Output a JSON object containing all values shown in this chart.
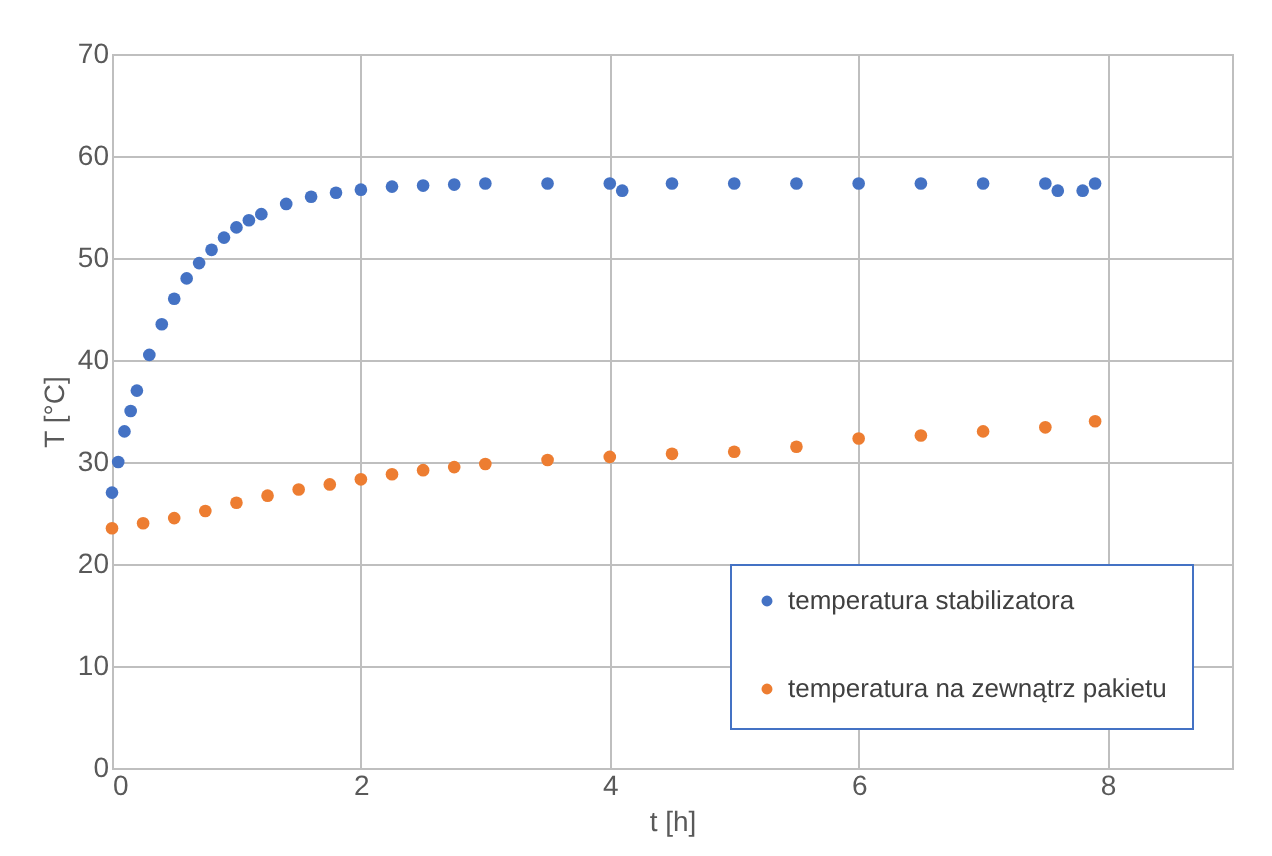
{
  "chart_data": {
    "type": "scatter",
    "xlabel": "t [h]",
    "ylabel": "T [°C]",
    "xlim": [
      0,
      9
    ],
    "xticks": [
      0,
      2,
      4,
      6,
      8
    ],
    "ylim": [
      0,
      70
    ],
    "yticks": [
      0,
      10,
      20,
      30,
      40,
      50,
      60,
      70
    ],
    "grid": true,
    "legend": "bottom right",
    "marker": "circle",
    "series": [
      {
        "name": "temperatura stabilizatora",
        "color": "#4472c4",
        "x": [
          0,
          0.05,
          0.1,
          0.15,
          0.2,
          0.3,
          0.4,
          0.5,
          0.6,
          0.7,
          0.8,
          0.9,
          1.0,
          1.1,
          1.2,
          1.4,
          1.6,
          1.8,
          2.0,
          2.25,
          2.5,
          2.75,
          3.0,
          3.5,
          4.0,
          4.1,
          4.5,
          5.0,
          5.5,
          6.0,
          6.5,
          7.0,
          7.5,
          7.6,
          7.8,
          7.9
        ],
        "values": [
          27,
          30,
          33,
          35,
          37,
          40.5,
          43.5,
          46,
          48,
          49.5,
          50.8,
          52,
          53,
          53.7,
          54.3,
          55.3,
          56,
          56.4,
          56.7,
          57,
          57.1,
          57.2,
          57.3,
          57.3,
          57.3,
          56.6,
          57.3,
          57.3,
          57.3,
          57.3,
          57.3,
          57.3,
          57.3,
          56.6,
          56.6,
          57.3
        ]
      },
      {
        "name": "temperatura na zewnątrz pakietu",
        "color": "#ed7d31",
        "x": [
          0,
          0.25,
          0.5,
          0.75,
          1.0,
          1.25,
          1.5,
          1.75,
          2.0,
          2.25,
          2.5,
          2.75,
          3.0,
          3.5,
          4.0,
          4.5,
          5.0,
          5.5,
          6.0,
          6.5,
          7.0,
          7.5,
          7.9
        ],
        "values": [
          23.5,
          24,
          24.5,
          25.2,
          26,
          26.7,
          27.3,
          27.8,
          28.3,
          28.8,
          29.2,
          29.5,
          29.8,
          30.2,
          30.5,
          30.8,
          31,
          31.5,
          32.3,
          32.6,
          33,
          33.4,
          34
        ]
      }
    ]
  }
}
